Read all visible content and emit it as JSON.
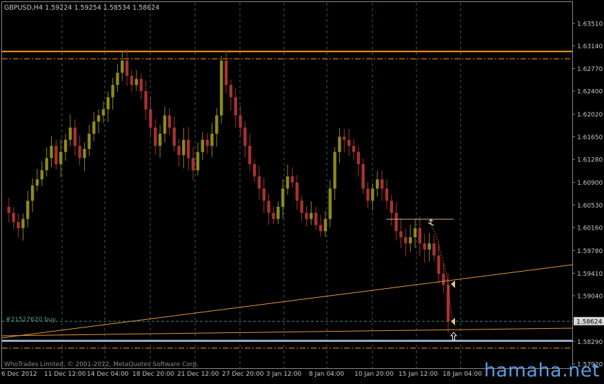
{
  "header": {
    "symbol_timeframe": "GBPUSD,H4",
    "quote_values": "1.59224 1.59254 1.58534 1.58624"
  },
  "footer": {
    "copyright": "WhoTrades Limited, © 2001-2012, MetaQuotes Software Corp."
  },
  "order": {
    "label": "#21527620 buy"
  },
  "watermark": {
    "text": "hamaha.net"
  },
  "price_scale": {
    "labels": [
      "1.63510",
      "1.63140",
      "1.62770",
      "1.62400",
      "1.62020",
      "1.61650",
      "1.61280",
      "1.60900",
      "1.60530",
      "1.60160",
      "1.59780",
      "1.59410",
      "1.59040",
      "1.58624",
      "1.58290",
      "1.57920"
    ],
    "current_price": "1.58624"
  },
  "time_scale": {
    "labels": [
      "6 Dec 2012",
      "11 Dec 12:00",
      "14 Dec 04:00",
      "18 Dec 20:00",
      "21 Dec 12:00",
      "27 Dec 20:00",
      "3 Jan 12:00",
      "8 Jan 04:00",
      "10 Jan 20:00",
      "15 Jan 12:00",
      "18 Jan 04:00"
    ]
  },
  "colors": {
    "background": "#000000",
    "grid": "#2f5f5f",
    "axis": "#8a8a8a",
    "text": "#c8c8c8",
    "bull_candle": "#8d8a1a",
    "bear_candle": "#a83232",
    "resistance": "#ff9f1a",
    "trendline": "#e69a3a",
    "support_band": "#9ab0c8",
    "order_line": "#4a8a8a",
    "price_label_bg": "#d8d8d8"
  },
  "chart_data": {
    "type": "candlestick",
    "symbol": "GBPUSD",
    "timeframe": "H4",
    "ylim": [
      1.5785,
      1.6375
    ],
    "grid": true,
    "last_bar": {
      "open": 1.59224,
      "high": 1.59254,
      "low": 1.58534,
      "close": 1.58624
    },
    "horizontal_levels": [
      {
        "price": 1.6305,
        "style": "solid"
      },
      {
        "price": 1.6293,
        "style": "dash-dot"
      },
      {
        "price": 1.5862,
        "style": "dashed"
      },
      {
        "price": 1.583,
        "style": "solid"
      },
      {
        "price": 1.5818,
        "style": "dash-dot"
      }
    ],
    "close_path": [
      1.605,
      1.604,
      1.6025,
      1.6015,
      1.603,
      1.606,
      1.6085,
      1.6095,
      1.611,
      1.613,
      1.615,
      1.612,
      1.614,
      1.616,
      1.618,
      1.615,
      1.613,
      1.6145,
      1.617,
      1.619,
      1.62,
      1.621,
      1.623,
      1.625,
      1.627,
      1.629,
      1.6265,
      1.625,
      1.626,
      1.624,
      1.621,
      1.618,
      1.615,
      1.617,
      1.62,
      1.618,
      1.615,
      1.6135,
      1.616,
      1.613,
      1.611,
      1.614,
      1.616,
      1.615,
      1.617,
      1.62,
      1.629,
      1.625,
      1.623,
      1.62,
      1.618,
      1.615,
      1.612,
      1.61,
      1.608,
      1.606,
      1.604,
      1.603,
      1.605,
      1.608,
      1.61,
      1.609,
      1.606,
      1.604,
      1.603,
      1.604,
      1.602,
      1.601,
      1.603,
      1.608,
      1.614,
      1.6165,
      1.616,
      1.615,
      1.614,
      1.612,
      1.608,
      1.606,
      1.608,
      1.6095,
      1.608,
      1.606,
      1.604,
      1.601,
      1.6,
      1.599,
      1.6,
      1.6015,
      1.599,
      1.598,
      1.599,
      1.597,
      1.594,
      1.5922,
      1.5862
    ]
  }
}
